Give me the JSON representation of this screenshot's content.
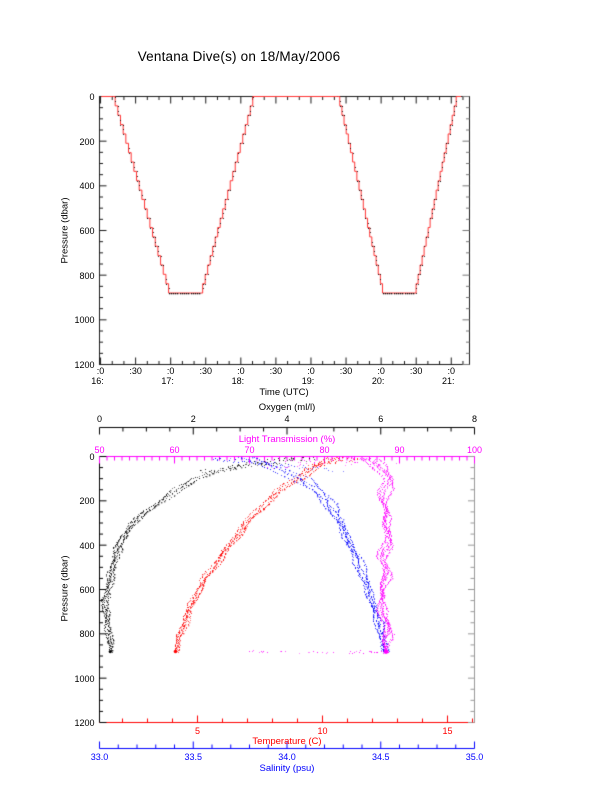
{
  "title": "Ventana Dive(s) on 18/May/2006",
  "colors": {
    "oxygen": "#000000",
    "light_transmission": "#ff00ff",
    "temperature": "#ff0000",
    "salinity": "#0000ff",
    "dive_line": "#ff3333",
    "dive_markers": "#000000",
    "frame": "#1a1a1a",
    "right_border": "#999999",
    "background": "#ffffff"
  },
  "chart_data": [
    {
      "id": "dive_profile",
      "type": "line",
      "xlabel": "Time (UTC)",
      "ylabel": "Pressure (dbar)",
      "xlim_hours": [
        15.985,
        21.26
      ],
      "ylim": [
        0,
        1200
      ],
      "y_reversed": true,
      "grid": false,
      "x_ticks": [
        {
          "t": 16.0,
          "minute": ":0",
          "hour": "16:"
        },
        {
          "t": 16.5,
          "minute": ":30"
        },
        {
          "t": 17.0,
          "minute": ":0",
          "hour": "17:"
        },
        {
          "t": 17.5,
          "minute": ":30"
        },
        {
          "t": 18.0,
          "minute": ":0",
          "hour": "18:"
        },
        {
          "t": 18.5,
          "minute": ":30"
        },
        {
          "t": 19.0,
          "minute": ":0",
          "hour": "19:"
        },
        {
          "t": 19.5,
          "minute": ":30"
        },
        {
          "t": 20.0,
          "minute": ":0",
          "hour": "20:"
        },
        {
          "t": 20.5,
          "minute": ":30"
        },
        {
          "t": 21.0,
          "minute": ":0",
          "hour": "21:"
        }
      ],
      "y_ticks": [
        [
          0,
          "0"
        ],
        [
          200,
          "200"
        ],
        [
          400,
          "400"
        ],
        [
          600,
          "600"
        ],
        [
          800,
          "800"
        ],
        [
          1000,
          "1000"
        ],
        [
          1200,
          "1200"
        ]
      ],
      "series": [
        {
          "name": "dive-depth",
          "style": "staircase",
          "line_color": "#ff3333",
          "marker_color": "#000000",
          "step_dbar": 42,
          "max_pressure_dbar": 880,
          "vertices_time_pressure": [
            [
              16.01,
              0
            ],
            [
              16.17,
              0
            ],
            [
              16.97,
              880
            ],
            [
              17.42,
              880
            ],
            [
              18.17,
              0
            ],
            [
              19.38,
              0
            ],
            [
              20.02,
              880
            ],
            [
              20.47,
              880
            ],
            [
              21.07,
              0
            ],
            [
              21.14,
              0
            ]
          ]
        }
      ]
    },
    {
      "id": "ctd_profiles",
      "type": "scatter",
      "ylabel": "Pressure (dbar)",
      "ylim": [
        0,
        1200
      ],
      "y_reversed": true,
      "grid": false,
      "y_ticks": [
        [
          0,
          "0"
        ],
        [
          200,
          "200"
        ],
        [
          400,
          "400"
        ],
        [
          600,
          "600"
        ],
        [
          800,
          "800"
        ],
        [
          1000,
          "1000"
        ],
        [
          1200,
          "1200"
        ]
      ],
      "x_axes": [
        {
          "key": "oxygen",
          "label": "Oxygen (ml/l)",
          "color": "#000000",
          "lim": [
            0,
            8
          ],
          "ticks": [
            [
              0,
              "0"
            ],
            [
              2,
              "2"
            ],
            [
              4,
              "4"
            ],
            [
              6,
              "6"
            ],
            [
              8,
              "8"
            ]
          ],
          "minor_step": 0.5,
          "major_step": 2,
          "position": "floating-top"
        },
        {
          "key": "light",
          "label": "Light Transmission (%)",
          "color": "#ff00ff",
          "lim": [
            50,
            100
          ],
          "ticks": [
            [
              50,
              "50"
            ],
            [
              60,
              "60"
            ],
            [
              70,
              "70"
            ],
            [
              80,
              "80"
            ],
            [
              90,
              "90"
            ],
            [
              100,
              "100"
            ]
          ],
          "minor_step": 1,
          "major_step": 10,
          "position": "top-border"
        },
        {
          "key": "temperature",
          "label": "Temperature (C)",
          "color": "#ff0000",
          "lim": [
            1.08,
            16.08
          ],
          "ticks": [
            [
              5,
              "5"
            ],
            [
              10,
              "10"
            ],
            [
              15,
              "15"
            ]
          ],
          "minor_step": 1,
          "major_step": 5,
          "position": "bottom-border"
        },
        {
          "key": "salinity",
          "label": "Salinity (psu)",
          "color": "#0000ff",
          "lim": [
            33.0,
            35.0
          ],
          "ticks": [
            [
              33.0,
              "33.0"
            ],
            [
              33.5,
              "33.5"
            ],
            [
              34.0,
              "34.0"
            ],
            [
              34.5,
              "34.5"
            ],
            [
              35.0,
              "35.0"
            ]
          ],
          "minor_step": 0.1,
          "major_step": 0.5,
          "position": "floating-bottom"
        }
      ],
      "series": [
        {
          "name": "oxygen-profile",
          "axis": "oxygen",
          "color": "#000000",
          "profile_pressure_value": [
            [
              0,
              4.25
            ],
            [
              10,
              3.9
            ],
            [
              20,
              3.5
            ],
            [
              40,
              3.0
            ],
            [
              60,
              2.62
            ],
            [
              80,
              2.3
            ],
            [
              100,
              2.05
            ],
            [
              130,
              1.8
            ],
            [
              150,
              1.62
            ],
            [
              180,
              1.42
            ],
            [
              200,
              1.28
            ],
            [
              250,
              0.95
            ],
            [
              300,
              0.7
            ],
            [
              350,
              0.53
            ],
            [
              400,
              0.42
            ],
            [
              450,
              0.33
            ],
            [
              500,
              0.26
            ],
            [
              550,
              0.21
            ],
            [
              600,
              0.16
            ],
            [
              650,
              0.12
            ],
            [
              700,
              0.14
            ],
            [
              750,
              0.17
            ],
            [
              800,
              0.19
            ],
            [
              840,
              0.21
            ],
            [
              880,
              0.23
            ]
          ],
          "surface_scatter": {
            "count": 55,
            "v_range": [
              2.1,
              4.6
            ],
            "p_range": [
              0,
              75
            ],
            "corr": -1
          },
          "end_dot": [
            0.23,
            880
          ],
          "style": {
            "sep": 0.035,
            "wiggle": 0.045,
            "jitter": 0.04,
            "surface_spread": 2.2,
            "step": 6,
            "radius": 1.6
          }
        },
        {
          "name": "temperature-profile",
          "axis": "temperature",
          "color": "#ff0000",
          "profile_pressure_value": [
            [
              0,
              10.6
            ],
            [
              30,
              10.0
            ],
            [
              60,
              9.4
            ],
            [
              100,
              8.9
            ],
            [
              150,
              8.3
            ],
            [
              200,
              7.8
            ],
            [
              250,
              7.35
            ],
            [
              300,
              6.95
            ],
            [
              350,
              6.6
            ],
            [
              400,
              6.25
            ],
            [
              450,
              5.9
            ],
            [
              500,
              5.6
            ],
            [
              550,
              5.3
            ],
            [
              600,
              5.05
            ],
            [
              650,
              4.8
            ],
            [
              700,
              4.6
            ],
            [
              750,
              4.45
            ],
            [
              800,
              4.3
            ],
            [
              840,
              4.2
            ],
            [
              880,
              4.12
            ]
          ],
          "surface_scatter": {
            "count": 42,
            "v_range": [
              9.2,
              11.4
            ],
            "p_range": [
              0,
              55
            ],
            "corr": -1
          },
          "end_dot": [
            4.12,
            880
          ],
          "style": {
            "sep": 0.07,
            "wiggle": 0.1,
            "jitter": 0.07,
            "surface_spread": 1.6,
            "step": 6,
            "radius": 1.8
          }
        },
        {
          "name": "salinity-profile",
          "axis": "salinity",
          "color": "#0000ff",
          "profile_pressure_value": [
            [
              0,
              33.78
            ],
            [
              20,
              33.84
            ],
            [
              50,
              33.93
            ],
            [
              100,
              34.08
            ],
            [
              150,
              34.16
            ],
            [
              200,
              34.21
            ],
            [
              250,
              34.25
            ],
            [
              300,
              34.28
            ],
            [
              350,
              34.31
            ],
            [
              400,
              34.34
            ],
            [
              450,
              34.37
            ],
            [
              500,
              34.39
            ],
            [
              550,
              34.41
            ],
            [
              600,
              34.43
            ],
            [
              650,
              34.45
            ],
            [
              700,
              34.47
            ],
            [
              750,
              34.49
            ],
            [
              800,
              34.5
            ],
            [
              840,
              34.51
            ],
            [
              880,
              34.52
            ]
          ],
          "surface_scatter": {
            "count": 52,
            "v_range": [
              33.6,
              34.3
            ],
            "p_range": [
              0,
              70
            ],
            "corr": 1
          },
          "end_dot": [
            34.52,
            877
          ],
          "style": {
            "sep": 0.011,
            "wiggle": 0.014,
            "jitter": 0.01,
            "surface_spread": 2.8,
            "step": 6,
            "radius": 1.6
          }
        },
        {
          "name": "light-transmission-profile",
          "axis": "light",
          "color": "#ff00ff",
          "profile_pressure_value": [
            [
              0,
              82.5
            ],
            [
              5,
              84.5
            ],
            [
              15,
              86.2
            ],
            [
              30,
              87.0
            ],
            [
              60,
              87.8
            ],
            [
              100,
              88.3
            ],
            [
              150,
              88.0
            ],
            [
              200,
              87.9
            ],
            [
              250,
              88.1
            ],
            [
              300,
              88.3
            ],
            [
              350,
              88.4
            ],
            [
              400,
              88.2
            ],
            [
              450,
              87.7
            ],
            [
              500,
              88.0
            ],
            [
              550,
              88.3
            ],
            [
              600,
              87.7
            ],
            [
              650,
              87.3
            ],
            [
              700,
              87.8
            ],
            [
              750,
              88.1
            ],
            [
              800,
              88.3
            ],
            [
              840,
              88.3
            ],
            [
              880,
              88.2
            ]
          ],
          "surface_scatter": {
            "count": 48,
            "v_range": [
              72,
              90
            ],
            "p_range": [
              0,
              55
            ],
            "corr": 0
          },
          "bottom_scatter": {
            "count": 46,
            "v_range": [
              69,
              88.5
            ],
            "p_range": [
              875,
              885
            ]
          },
          "end_dot": [
            88.2,
            880
          ],
          "style": {
            "sep": 0.28,
            "wiggle": 0.45,
            "jitter": 0.3,
            "surface_spread": 0.9,
            "step": 4.5,
            "radius": 2.4
          }
        }
      ]
    }
  ]
}
